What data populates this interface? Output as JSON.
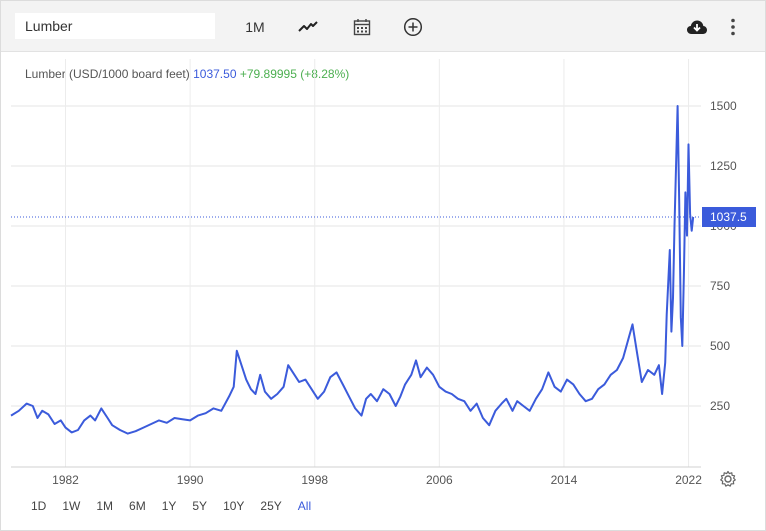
{
  "toolbar": {
    "symbol_value": "Lumber",
    "interval_label": "1M",
    "icons": [
      "line-style-icon",
      "calendar-icon",
      "add-compare-icon",
      "download-cloud-icon",
      "more-vert-icon"
    ]
  },
  "legend": {
    "name": "Lumber (USD/1000 board feet)",
    "price": "1037.50",
    "change": "+79.89995 (+8.28%)"
  },
  "price_tag": "1037.5",
  "range_buttons": [
    "1D",
    "1W",
    "1M",
    "6M",
    "1Y",
    "5Y",
    "10Y",
    "25Y",
    "All"
  ],
  "active_range": "All",
  "colors": {
    "line": "#3b5bdb",
    "positive": "#4caf50",
    "tag_bg": "#3b5bdb"
  },
  "chart_data": {
    "type": "line",
    "title": "Lumber (USD/1000 board feet)",
    "x_ticks": [
      "1982",
      "1990",
      "1998",
      "2006",
      "2014",
      "2022"
    ],
    "y_ticks": [
      250,
      500,
      750,
      1000,
      1250,
      1500
    ],
    "xlim": [
      1978.5,
      2022.8
    ],
    "ylim": [
      0,
      1500
    ],
    "grid": true,
    "current_value": 1037.5,
    "series": [
      {
        "name": "Lumber",
        "x": [
          1978.5,
          1979.0,
          1979.5,
          1979.9,
          1980.2,
          1980.5,
          1980.9,
          1981.3,
          1981.7,
          1982.0,
          1982.4,
          1982.8,
          1983.2,
          1983.6,
          1983.9,
          1984.3,
          1984.7,
          1985.0,
          1985.5,
          1986.0,
          1986.5,
          1987.0,
          1987.5,
          1988.0,
          1988.5,
          1989.0,
          1989.5,
          1990.0,
          1990.5,
          1991.0,
          1991.5,
          1992.0,
          1992.5,
          1992.8,
          1993.0,
          1993.3,
          1993.6,
          1993.9,
          1994.2,
          1994.5,
          1994.8,
          1995.2,
          1995.6,
          1996.0,
          1996.3,
          1996.6,
          1997.0,
          1997.4,
          1997.8,
          1998.2,
          1998.6,
          1999.0,
          1999.4,
          1999.8,
          2000.2,
          2000.6,
          2001.0,
          2001.3,
          2001.6,
          2002.0,
          2002.4,
          2002.8,
          2003.2,
          2003.5,
          2003.8,
          2004.2,
          2004.5,
          2004.8,
          2005.2,
          2005.6,
          2006.0,
          2006.4,
          2006.8,
          2007.2,
          2007.6,
          2008.0,
          2008.4,
          2008.8,
          2009.2,
          2009.6,
          2010.0,
          2010.3,
          2010.7,
          2011.0,
          2011.4,
          2011.8,
          2012.2,
          2012.6,
          2013.0,
          2013.4,
          2013.8,
          2014.2,
          2014.6,
          2015.0,
          2015.4,
          2015.8,
          2016.2,
          2016.6,
          2017.0,
          2017.4,
          2017.8,
          2018.1,
          2018.4,
          2018.7,
          2019.0,
          2019.4,
          2019.8,
          2020.1,
          2020.3,
          2020.5,
          2020.6,
          2020.8,
          2020.9,
          2021.0,
          2021.1,
          2021.3,
          2021.4,
          2021.5,
          2021.6,
          2021.7,
          2021.8,
          2021.9,
          2022.0,
          2022.1,
          2022.2,
          2022.3
        ],
        "y": [
          210,
          230,
          260,
          250,
          200,
          230,
          215,
          175,
          190,
          160,
          140,
          150,
          190,
          210,
          190,
          240,
          200,
          170,
          150,
          135,
          145,
          160,
          175,
          190,
          180,
          200,
          195,
          190,
          210,
          220,
          240,
          230,
          290,
          330,
          480,
          420,
          360,
          320,
          300,
          380,
          310,
          280,
          300,
          330,
          420,
          390,
          350,
          360,
          320,
          280,
          310,
          370,
          390,
          340,
          290,
          240,
          210,
          280,
          300,
          270,
          320,
          300,
          250,
          290,
          340,
          380,
          440,
          370,
          410,
          380,
          330,
          310,
          300,
          280,
          270,
          230,
          260,
          200,
          170,
          230,
          260,
          280,
          230,
          270,
          250,
          230,
          280,
          320,
          390,
          330,
          310,
          360,
          340,
          300,
          270,
          280,
          320,
          340,
          380,
          400,
          450,
          520,
          590,
          470,
          350,
          400,
          380,
          420,
          300,
          430,
          630,
          900,
          560,
          700,
          1000,
          1500,
          1100,
          620,
          500,
          800,
          1140,
          960,
          1340,
          1050,
          980,
          1037.5
        ]
      }
    ]
  }
}
